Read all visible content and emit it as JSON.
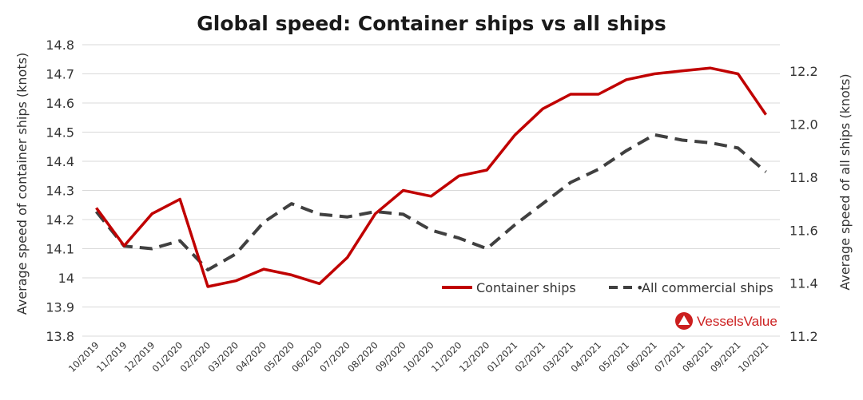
{
  "chart_data": {
    "type": "line",
    "title": "Global speed: Container ships vs all ships",
    "categories": [
      "10/2019",
      "11/2019",
      "12/2019",
      "01/2020",
      "02/2020",
      "03/2020",
      "04/2020",
      "05/2020",
      "06/2020",
      "07/2020",
      "08/2020",
      "09/2020",
      "10/2020",
      "11/2020",
      "12/2020",
      "01/2021",
      "02/2021",
      "03/2021",
      "04/2021",
      "05/2021",
      "06/2021",
      "07/2021",
      "08/2021",
      "09/2021",
      "10/2021"
    ],
    "y_left": {
      "label": "Average speed of container ships (knots)",
      "ylim": [
        13.8,
        14.8
      ],
      "ticks": [
        "13.8",
        "13.9",
        "14",
        "14.1",
        "14.2",
        "14.3",
        "14.4",
        "14.5",
        "14.6",
        "14.7",
        "14.8"
      ]
    },
    "y_right": {
      "label": "Average speed of all ships (knots)",
      "ylim": [
        11.2,
        12.3
      ],
      "ticks": [
        "11.2",
        "11.4",
        "11.6",
        "11.8",
        "12.0",
        "12.2"
      ]
    },
    "series": [
      {
        "name": "Container ships",
        "axis": "left",
        "color": "#c00000",
        "style": "solid",
        "values": [
          14.24,
          14.11,
          14.22,
          14.27,
          13.97,
          13.99,
          14.03,
          14.01,
          13.98,
          14.07,
          14.22,
          14.3,
          14.28,
          14.35,
          14.37,
          14.49,
          14.58,
          14.63,
          14.63,
          14.68,
          14.7,
          14.71,
          14.72,
          14.7,
          14.56
        ]
      },
      {
        "name": "All commercial ships",
        "axis": "right",
        "color": "#404040",
        "style": "dashed",
        "values": [
          11.67,
          11.54,
          11.53,
          11.56,
          11.45,
          11.51,
          11.63,
          11.7,
          11.66,
          11.65,
          11.67,
          11.66,
          11.6,
          11.57,
          11.53,
          11.62,
          11.7,
          11.78,
          11.83,
          11.9,
          11.96,
          11.94,
          11.93,
          11.91,
          11.82
        ]
      }
    ],
    "grid": true,
    "legend_position": "bottom-right"
  },
  "branding": {
    "logo_text": "VesselsValue",
    "color": "#cc1f1f"
  }
}
